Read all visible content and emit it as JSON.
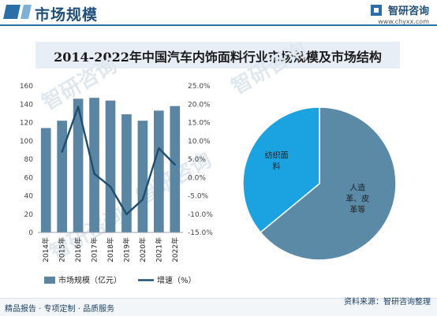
{
  "header": {
    "title": "市场规模",
    "brand_name": "智研咨询",
    "brand_url": "www.chyxx.com"
  },
  "chart_title": "2014-2022年中国汽车内饰面料行业市场规模及市场结构",
  "watermark_text": "智研咨询",
  "footer": {
    "left": "精品报告 · 专项定制 · 品质服务",
    "right": "资料来源：智研咨询整理"
  },
  "chart_data": [
    {
      "type": "bar",
      "categories": [
        "2014年",
        "2015年",
        "2016年",
        "2017年",
        "2018年",
        "2019年",
        "2020年",
        "2021年",
        "2022年"
      ],
      "series": [
        {
          "name": "市场规模（亿元）",
          "type": "bar",
          "axis": "left",
          "values": [
            114,
            122,
            146,
            147,
            144,
            129,
            122,
            133,
            138
          ],
          "color": "#5a86a3"
        },
        {
          "name": "增速（%）",
          "type": "line",
          "axis": "right",
          "values": [
            null,
            7.0,
            19.3,
            1.0,
            -2.5,
            -10.0,
            -6.0,
            8.0,
            3.5
          ],
          "color": "#1e4f6e"
        }
      ],
      "ylim_left": [
        0,
        160
      ],
      "yticks_left": [
        "0",
        "20",
        "40",
        "60",
        "80",
        "100",
        "120",
        "140",
        "160"
      ],
      "ylim_right": [
        -15,
        25
      ],
      "yticks_right": [
        "-15.0%",
        "-10.0%",
        "-5.0%",
        "0.0%",
        "5.0%",
        "10.0%",
        "15.0%",
        "20.0%",
        "25.0%"
      ],
      "legend": "bottom",
      "grid": false
    },
    {
      "type": "pie",
      "labels": [
        "人造革、皮革等",
        "纺织面料"
      ],
      "label_lines": [
        [
          "人造",
          "革、皮",
          "革等"
        ],
        [
          "纺织面",
          "料"
        ]
      ],
      "values": [
        64,
        36
      ],
      "colors": [
        "#5b8aa6",
        "#1aa3e0"
      ]
    }
  ]
}
